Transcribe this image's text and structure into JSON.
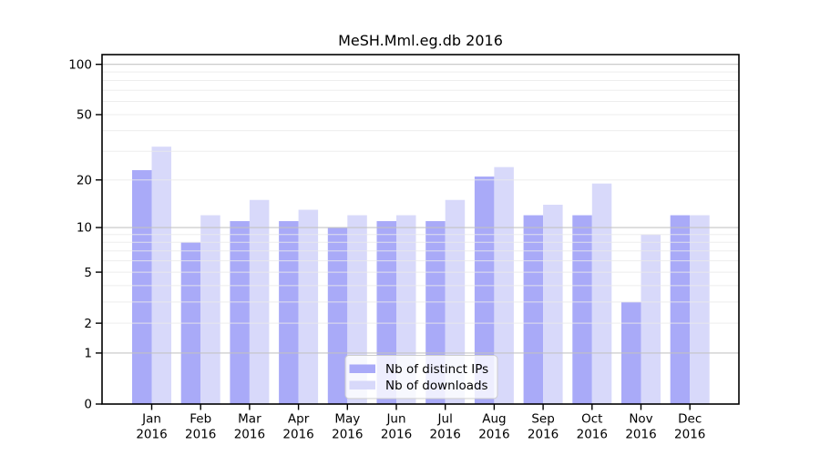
{
  "figure": {
    "title": "MeSH.Mml.eg.db 2016"
  },
  "chart_data": {
    "type": "bar",
    "title": "MeSH.Mml.eg.db 2016",
    "xlabel": "",
    "ylabel": "",
    "months": [
      "Jan",
      "Feb",
      "Mar",
      "Apr",
      "May",
      "Jun",
      "Jul",
      "Aug",
      "Sep",
      "Oct",
      "Nov",
      "Dec"
    ],
    "year": "2016",
    "categories": [
      "Jan 2016",
      "Feb 2016",
      "Mar 2016",
      "Apr 2016",
      "May 2016",
      "Jun 2016",
      "Jul 2016",
      "Aug 2016",
      "Sep 2016",
      "Oct 2016",
      "Nov 2016",
      "Dec 2016"
    ],
    "series": [
      {
        "name": "Nb of distinct IPs",
        "color": "#a9aaf8",
        "values": [
          23,
          8,
          11,
          11,
          10,
          11,
          11,
          21,
          12,
          12,
          3,
          12
        ]
      },
      {
        "name": "Nb of downloads",
        "color": "#d8d9fa",
        "values": [
          32,
          12,
          15,
          13,
          12,
          12,
          15,
          24,
          14,
          19,
          9,
          12
        ]
      }
    ],
    "yscale": "log1p",
    "ylim": [
      0,
      115
    ],
    "y_tick_values": [
      0,
      1,
      2,
      5,
      10,
      20,
      50,
      100
    ],
    "y_tick_labels": [
      "0",
      "1",
      "2",
      "5",
      "10",
      "20",
      "50",
      "100"
    ],
    "y_major_gridlines": [
      1,
      10,
      100
    ],
    "y_minor_gridlines": [
      2,
      3,
      4,
      5,
      6,
      7,
      8,
      9,
      20,
      30,
      40,
      50,
      60,
      70,
      80,
      90
    ],
    "grid": true,
    "legend_position": "lower center",
    "colors": {
      "major_grid": "#c2c2c2",
      "minor_grid": "#eaeaea",
      "axis": "#000000",
      "background": "#ffffff",
      "legend_border": "#cccccc",
      "legend_background": "#ffffff",
      "text": "#000000"
    }
  }
}
